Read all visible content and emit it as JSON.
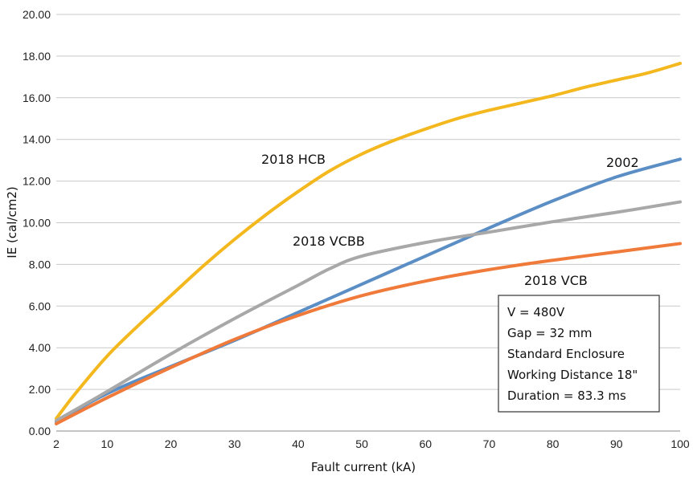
{
  "chart_data": {
    "type": "line",
    "xlabel": "Fault current (kA)",
    "ylabel": "IE (cal/cm2)",
    "xlim": [
      2,
      100
    ],
    "ylim": [
      0,
      20
    ],
    "x_ticks": [
      "2",
      "10",
      "20",
      "30",
      "40",
      "50",
      "60",
      "70",
      "80",
      "90",
      "100"
    ],
    "y_ticks": [
      "0.00",
      "2.00",
      "4.00",
      "6.00",
      "8.00",
      "10.00",
      "12.00",
      "14.00",
      "16.00",
      "18.00",
      "20.00"
    ],
    "grid": "horizontal",
    "series": [
      {
        "name": "2018 HCB",
        "color": "#f4b81f",
        "points": [
          [
            2,
            0.6
          ],
          [
            5,
            1.8
          ],
          [
            10,
            3.6
          ],
          [
            15,
            5.1
          ],
          [
            20,
            6.5
          ],
          [
            25,
            7.9
          ],
          [
            30,
            9.2
          ],
          [
            35,
            10.4
          ],
          [
            40,
            11.5
          ],
          [
            45,
            12.5
          ],
          [
            50,
            13.3
          ],
          [
            55,
            13.95
          ],
          [
            60,
            14.5
          ],
          [
            65,
            15.0
          ],
          [
            70,
            15.4
          ],
          [
            75,
            15.75
          ],
          [
            80,
            16.1
          ],
          [
            85,
            16.5
          ],
          [
            90,
            16.85
          ],
          [
            95,
            17.2
          ],
          [
            100,
            17.65
          ]
        ]
      },
      {
        "name": "2002",
        "color": "#5b8ec4",
        "points": [
          [
            2,
            0.45
          ],
          [
            10,
            1.8
          ],
          [
            20,
            3.1
          ],
          [
            30,
            4.35
          ],
          [
            40,
            5.7
          ],
          [
            50,
            7.05
          ],
          [
            60,
            8.4
          ],
          [
            70,
            9.75
          ],
          [
            80,
            11.05
          ],
          [
            90,
            12.2
          ],
          [
            100,
            13.05
          ]
        ]
      },
      {
        "name": "2018 VCBB",
        "color": "#a8a8a8",
        "points": [
          [
            2,
            0.5
          ],
          [
            10,
            1.9
          ],
          [
            20,
            3.7
          ],
          [
            30,
            5.4
          ],
          [
            40,
            7.0
          ],
          [
            45,
            7.8
          ],
          [
            50,
            8.4
          ],
          [
            60,
            9.05
          ],
          [
            70,
            9.55
          ],
          [
            80,
            10.05
          ],
          [
            90,
            10.5
          ],
          [
            100,
            11.0
          ]
        ]
      },
      {
        "name": "2018 VCB",
        "color": "#f07a3a",
        "points": [
          [
            2,
            0.35
          ],
          [
            10,
            1.6
          ],
          [
            20,
            3.05
          ],
          [
            30,
            4.4
          ],
          [
            40,
            5.55
          ],
          [
            50,
            6.5
          ],
          [
            60,
            7.2
          ],
          [
            70,
            7.75
          ],
          [
            80,
            8.2
          ],
          [
            90,
            8.6
          ],
          [
            100,
            9.0
          ]
        ]
      }
    ],
    "annotation_lines": [
      "V = 480V",
      "Gap = 32 mm",
      "Standard Enclosure",
      "Working Distance 18\"",
      "Duration = 83.3 ms"
    ]
  }
}
